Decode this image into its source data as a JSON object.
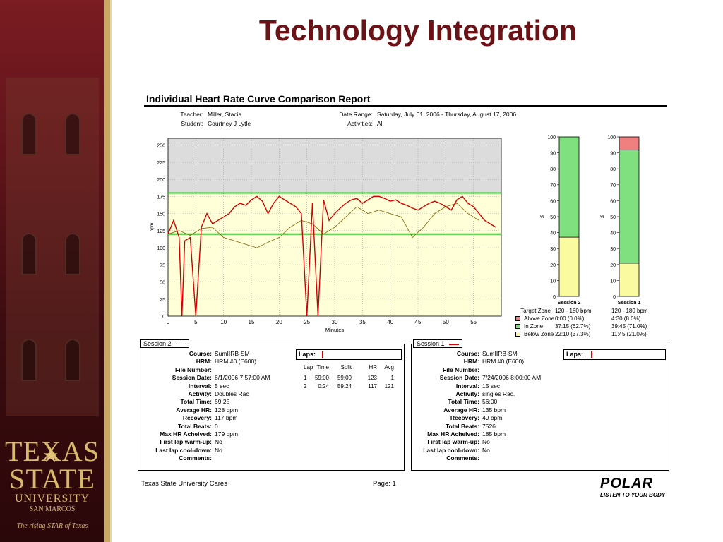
{
  "slide": {
    "title": "Technology Integration",
    "logo": {
      "line1": "TEXAS",
      "line2": "STATE",
      "line3": "UNIVERSITY",
      "line4": "SAN MARCOS",
      "tagline": "The rising STAR of Texas"
    }
  },
  "report": {
    "title": "Individual Heart Rate Curve Comparison Report",
    "meta": {
      "teacher_label": "Teacher:",
      "teacher": "Miller, Stacia",
      "student_label": "Student:",
      "student": "Courtney J Lytle",
      "date_range_label": "Date Range:",
      "date_range": "Saturday, July 01, 2006 - Thursday, August 17, 2006",
      "activities_label": "Activities:",
      "activities": "All"
    },
    "zone_table": {
      "headers": [
        "Session 2",
        "Session 1"
      ],
      "rows": [
        {
          "label": "Target Zone",
          "s2": "120 - 180 bpm",
          "s1": "120 - 180 bpm",
          "color": ""
        },
        {
          "label": "Above Zone",
          "s2": "0:00  (0.0%)",
          "s1": "4:30  (8.0%)",
          "color": "#f08080"
        },
        {
          "label": "In Zone",
          "s2": "37:15  (62.7%)",
          "s1": "39:45  (71.0%)",
          "color": "#80e080"
        },
        {
          "label": "Below Zone",
          "s2": "22:10  (37.3%)",
          "s1": "11:45  (21.0%)",
          "color": "#fafaa0"
        }
      ]
    },
    "session2": {
      "tab": "Session 2",
      "fields": [
        {
          "k": "Course:",
          "v": "SumIIRB-SM"
        },
        {
          "k": "HRM:",
          "v": "HRM  #0   (E600)"
        },
        {
          "k": "File Number:",
          "v": ""
        },
        {
          "k": "Session Date:",
          "v": "8/1/2006 7:57:00 AM"
        },
        {
          "k": "Interval:",
          "v": "5 sec"
        },
        {
          "k": "Activity:",
          "v": "Doubles Rac"
        },
        {
          "k": "Total Time:",
          "v": "59:25"
        },
        {
          "k": "Average HR:",
          "v": "128 bpm"
        },
        {
          "k": "Recovery:",
          "v": "117 bpm"
        },
        {
          "k": "Total Beats:",
          "v": "0"
        },
        {
          "k": "Max HR Acheived:",
          "v": "179 bpm"
        },
        {
          "k": "First lap warm-up:",
          "v": "No"
        },
        {
          "k": "Last lap cool-down:",
          "v": "No"
        },
        {
          "k": "Comments:",
          "v": ""
        }
      ],
      "laps_label": "Laps:",
      "lap_headers": [
        "Lap",
        "Time",
        "Split",
        "HR",
        "Avg"
      ],
      "laps": [
        [
          "1",
          "59:00",
          "59:00",
          "123",
          "1"
        ],
        [
          "2",
          "0:24",
          "59:24",
          "117",
          "121"
        ]
      ]
    },
    "session1": {
      "tab": "Session 1",
      "fields": [
        {
          "k": "Course:",
          "v": "SumIIRB-SM"
        },
        {
          "k": "HRM:",
          "v": "HRM  #0   (E600)"
        },
        {
          "k": "File Number:",
          "v": ""
        },
        {
          "k": "Session Date:",
          "v": "7/24/2006 8:00:00 AM"
        },
        {
          "k": "Interval:",
          "v": "15 sec"
        },
        {
          "k": "Activity:",
          "v": "singles Rac."
        },
        {
          "k": "Total Time:",
          "v": "56:00"
        },
        {
          "k": "Average HR:",
          "v": "135 bpm"
        },
        {
          "k": "Recovery:",
          "v": "49 bpm"
        },
        {
          "k": "Total Beats:",
          "v": "7526"
        },
        {
          "k": "Max HR Acheived:",
          "v": "185 bpm"
        },
        {
          "k": "First lap warm-up:",
          "v": "No"
        },
        {
          "k": "Last lap cool-down:",
          "v": "No"
        },
        {
          "k": "Comments:",
          "v": ""
        }
      ],
      "laps_label": "Laps:"
    },
    "footer": {
      "left": "Texas State University Cares",
      "page": "Page:  1",
      "brand": "POLAR",
      "brand_tag": "LISTEN TO YOUR BODY"
    }
  },
  "chart_data": [
    {
      "type": "line",
      "xlabel": "Minutes",
      "ylabel": "bpm",
      "xlim": [
        0,
        60
      ],
      "ylim": [
        0,
        260
      ],
      "xticks": [
        0,
        5,
        10,
        15,
        20,
        25,
        30,
        35,
        40,
        45,
        50,
        55
      ],
      "yticks": [
        0,
        25,
        50,
        75,
        100,
        125,
        150,
        175,
        200,
        225,
        250
      ],
      "grid": true,
      "target_zone": [
        120,
        180
      ],
      "series": [
        {
          "name": "Session 2",
          "color": "#d40000",
          "x": [
            0,
            1,
            2,
            2.5,
            3,
            4,
            5,
            6,
            7,
            8,
            9,
            10,
            11,
            12,
            13,
            14,
            15,
            16,
            17,
            18,
            19,
            20,
            21,
            22,
            23,
            24,
            25,
            26,
            27,
            28,
            29,
            30,
            31,
            32,
            33,
            34,
            35,
            36,
            37,
            38,
            39,
            40,
            41,
            42,
            43,
            44,
            45,
            46,
            47,
            48,
            49,
            50,
            51,
            52,
            53,
            54,
            55,
            56,
            57,
            58,
            59
          ],
          "y": [
            120,
            140,
            115,
            0,
            110,
            115,
            0,
            130,
            150,
            135,
            140,
            145,
            150,
            160,
            165,
            162,
            170,
            175,
            168,
            150,
            165,
            175,
            170,
            165,
            160,
            150,
            0,
            165,
            0,
            170,
            140,
            150,
            158,
            165,
            170,
            172,
            165,
            170,
            175,
            175,
            172,
            168,
            170,
            165,
            162,
            158,
            155,
            160,
            165,
            168,
            165,
            160,
            155,
            170,
            175,
            165,
            160,
            150,
            140,
            135,
            130
          ]
        },
        {
          "name": "Session 1",
          "color": "#806000",
          "x": [
            0,
            2,
            4,
            6,
            8,
            10,
            12,
            14,
            16,
            18,
            20,
            22,
            24,
            26,
            28,
            30,
            32,
            34,
            36,
            38,
            40,
            42,
            44,
            46,
            48,
            50,
            52,
            54,
            56
          ],
          "y": [
            120,
            125,
            118,
            128,
            130,
            115,
            110,
            105,
            100,
            108,
            115,
            130,
            140,
            135,
            120,
            130,
            145,
            160,
            150,
            155,
            150,
            145,
            115,
            130,
            150,
            160,
            165,
            150,
            140
          ]
        }
      ]
    },
    {
      "type": "bar",
      "title": "Session 2",
      "ylabel": "%",
      "ylim": [
        0,
        100
      ],
      "yticks": [
        0,
        10,
        20,
        30,
        40,
        50,
        60,
        70,
        80,
        90,
        100
      ],
      "stack": [
        {
          "name": "Below Zone",
          "value": 37.3,
          "color": "#fafaa0"
        },
        {
          "name": "In Zone",
          "value": 62.7,
          "color": "#80e080"
        },
        {
          "name": "Above Zone",
          "value": 0.0,
          "color": "#f08080"
        }
      ]
    },
    {
      "type": "bar",
      "title": "Session 1",
      "ylabel": "%",
      "ylim": [
        0,
        100
      ],
      "yticks": [
        0,
        10,
        20,
        30,
        40,
        50,
        60,
        70,
        80,
        90,
        100
      ],
      "stack": [
        {
          "name": "Below Zone",
          "value": 21.0,
          "color": "#fafaa0"
        },
        {
          "name": "In Zone",
          "value": 71.0,
          "color": "#80e080"
        },
        {
          "name": "Above Zone",
          "value": 8.0,
          "color": "#f08080"
        }
      ]
    }
  ]
}
